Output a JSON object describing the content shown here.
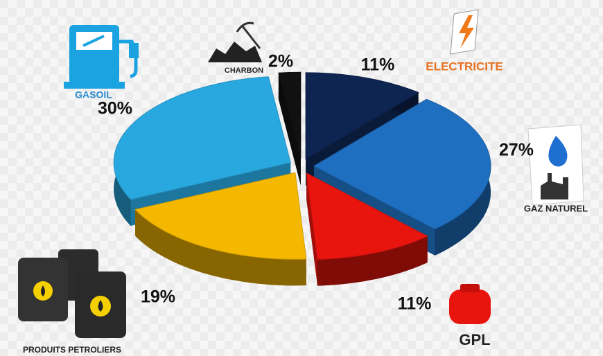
{
  "chart_data": {
    "type": "pie3d",
    "categories": [
      "CHARBON",
      "ELECTRICITE",
      "GAZ NATUREL",
      "GPL",
      "PRODUITS PETROLIERS",
      "GASOIL"
    ],
    "values": [
      2,
      11,
      27,
      11,
      19,
      30
    ],
    "value_labels": [
      "2%",
      "11%",
      "27%",
      "11%",
      "19%",
      "30%"
    ],
    "colors": [
      "#111111",
      "#0e2552",
      "#1f6fc0",
      "#e8150f",
      "#f5b800",
      "#29a8e0"
    ]
  }
}
